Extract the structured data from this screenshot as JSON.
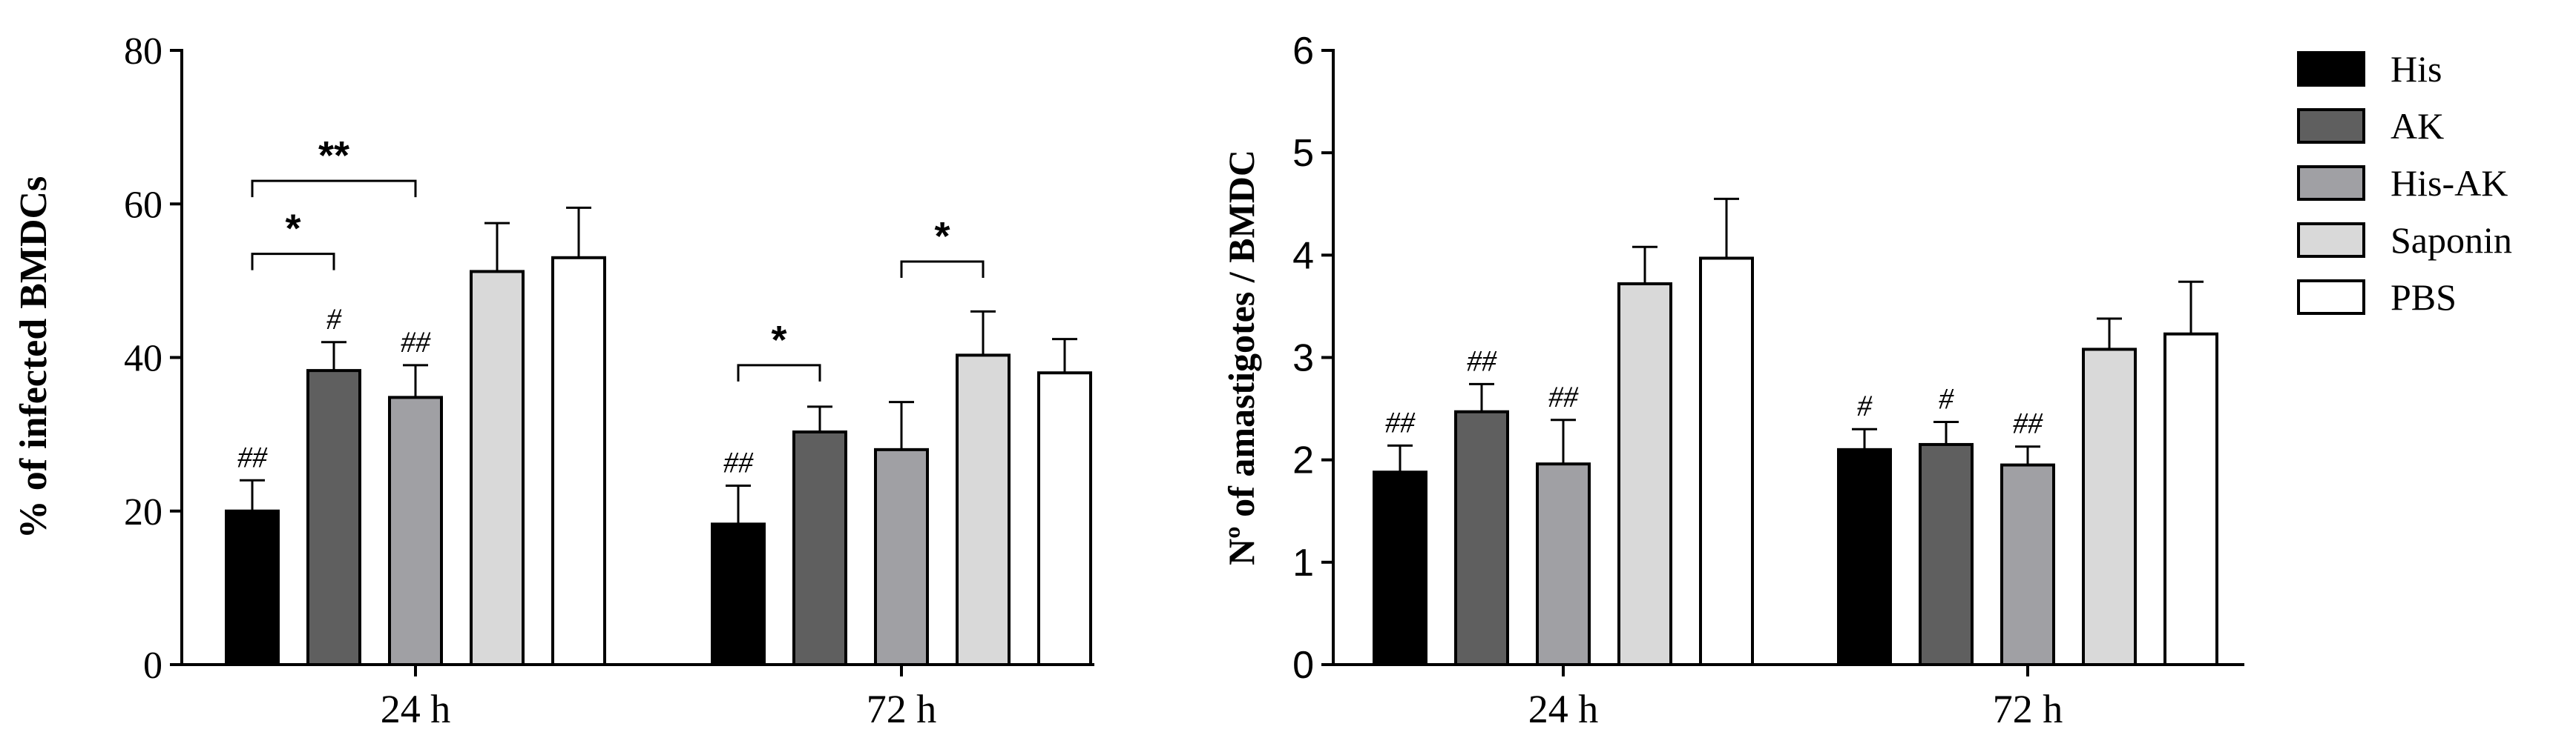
{
  "colors": {
    "His": "#000000",
    "AK": "#5f5f5f",
    "His-AK": "#a0a0a4",
    "Saponin": "#d9d9d9",
    "PBS": "#ffffff"
  },
  "legend": {
    "items": [
      "His",
      "AK",
      "His-AK",
      "Saponin",
      "PBS"
    ]
  },
  "chart_data": [
    {
      "type": "bar",
      "title": "",
      "xlabel": "",
      "ylabel": "% of infected BMDCs",
      "categories": [
        "24 h",
        "72 h"
      ],
      "ylim": [
        0,
        80
      ],
      "yticks": [
        "0",
        "20",
        "40",
        "60",
        "80"
      ],
      "series": [
        {
          "name": "His",
          "values": [
            20,
            18.3
          ],
          "errors": [
            4,
            5
          ],
          "marks": [
            "##",
            "##"
          ]
        },
        {
          "name": "AK",
          "values": [
            38.3,
            30.3
          ],
          "errors": [
            3.7,
            3.3
          ],
          "marks": [
            "#",
            ""
          ]
        },
        {
          "name": "His-AK",
          "values": [
            34.8,
            28
          ],
          "errors": [
            4.2,
            6.2
          ],
          "marks": [
            "##",
            ""
          ]
        },
        {
          "name": "Saponin",
          "values": [
            51.2,
            40.3
          ],
          "errors": [
            6.3,
            5.7
          ],
          "marks": [
            "",
            ""
          ]
        },
        {
          "name": "PBS",
          "values": [
            53,
            38
          ],
          "errors": [
            6.5,
            4.4
          ],
          "marks": [
            "",
            ""
          ]
        }
      ],
      "annotations": [
        {
          "group": 0,
          "from": 0,
          "to": 1,
          "y": 53.5,
          "label": "*"
        },
        {
          "group": 0,
          "from": 0,
          "to": 2,
          "y": 63,
          "label": "**"
        },
        {
          "group": 1,
          "from": 0,
          "to": 1,
          "y": 39,
          "label": "*"
        },
        {
          "group": 1,
          "from": 2,
          "to": 3,
          "y": 52.5,
          "label": "*"
        }
      ]
    },
    {
      "type": "bar",
      "title": "",
      "xlabel": "",
      "ylabel": "Nº of amastigotes / BMDC",
      "categories": [
        "24 h",
        "72 h"
      ],
      "ylim": [
        0,
        6
      ],
      "yticks": [
        "0",
        "1",
        "2",
        "3",
        "4",
        "5",
        "6"
      ],
      "series": [
        {
          "name": "His",
          "values": [
            1.88,
            2.1
          ],
          "errors": [
            0.26,
            0.2
          ],
          "marks": [
            "##",
            "#"
          ]
        },
        {
          "name": "AK",
          "values": [
            2.47,
            2.15
          ],
          "errors": [
            0.27,
            0.22
          ],
          "marks": [
            "##",
            "#"
          ]
        },
        {
          "name": "His-AK",
          "values": [
            1.96,
            1.95
          ],
          "errors": [
            0.43,
            0.18
          ],
          "marks": [
            "##",
            "##"
          ]
        },
        {
          "name": "Saponin",
          "values": [
            3.72,
            3.08
          ],
          "errors": [
            0.36,
            0.3
          ],
          "marks": [
            "",
            ""
          ]
        },
        {
          "name": "PBS",
          "values": [
            3.97,
            3.23
          ],
          "errors": [
            0.58,
            0.51
          ],
          "marks": [
            "",
            ""
          ]
        }
      ],
      "annotations": []
    }
  ]
}
